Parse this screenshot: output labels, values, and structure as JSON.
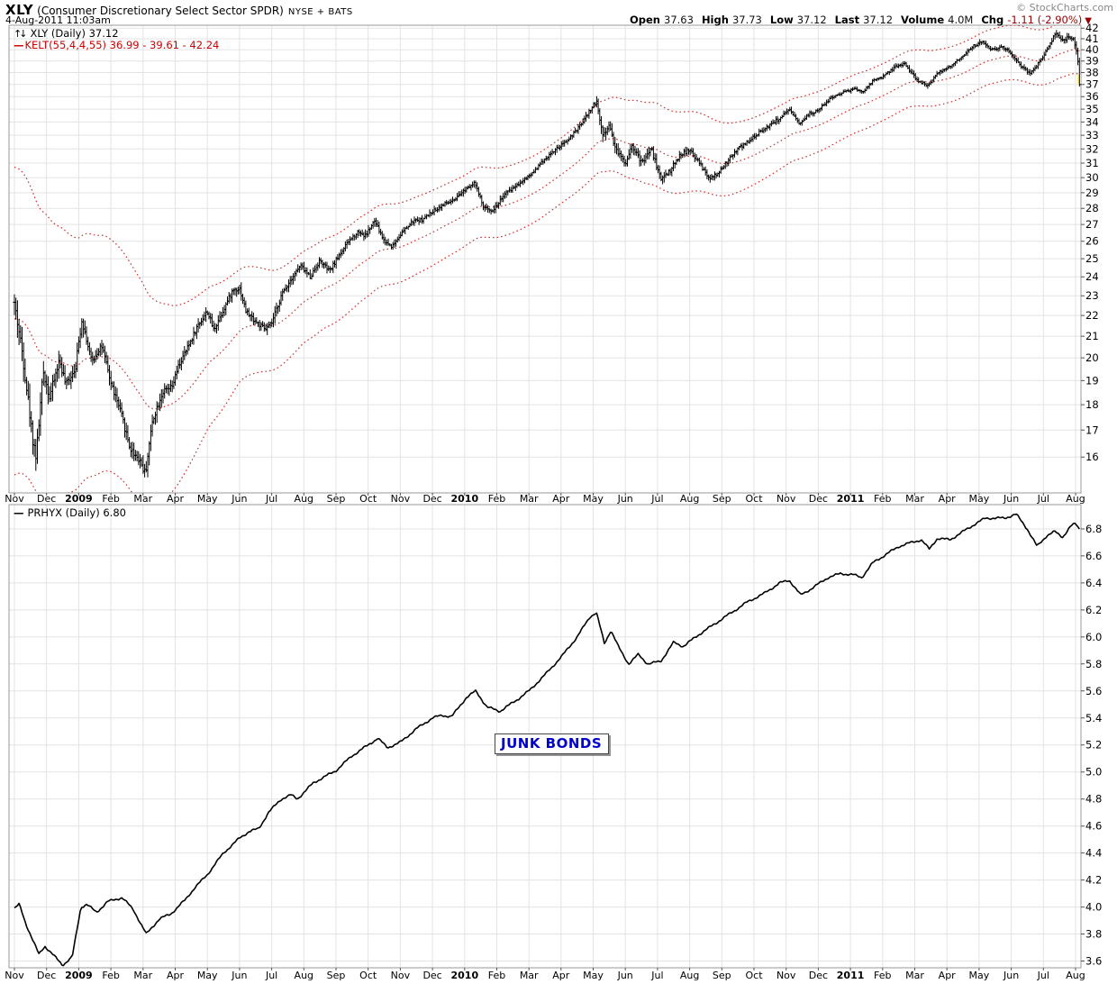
{
  "header": {
    "symbol": "XLY",
    "name": "(Consumer Discretionary Select Sector SPDR)",
    "exchange": "NYSE + BATS",
    "copyright": "© StockCharts.com",
    "datetime": "4-Aug-2011 11:03am",
    "quote": {
      "open_label": "Open",
      "open": "37.63",
      "high_label": "High",
      "high": "37.73",
      "low_label": "Low",
      "low": "37.12",
      "last_label": "Last",
      "last": "37.12",
      "volume_label": "Volume",
      "volume": "4.0M",
      "chg_label": "Chg",
      "chg": "-1.11 (-2.90%)",
      "chg_arrow": "▼"
    }
  },
  "legends": {
    "xly_icon": "↑↓",
    "xly": "XLY (Daily) 37.12",
    "kelt_swatch": "—",
    "kelt": "KELT(55,4,4,55) 36.99 - 39.61 - 42.24",
    "prhyx_swatch": "—",
    "prhyx": "PRHYX (Daily) 6.80"
  },
  "annotation": {
    "text": "JUNK BONDS"
  },
  "colors": {
    "bar": "#000000",
    "kelt": "#cc3333",
    "grid": "#e3e3e3",
    "border": "#999999",
    "tick": "#555555",
    "neg": "#990000",
    "annotation_blue": "#0000cc",
    "highlight": "#ffee77",
    "line": "#000000"
  },
  "chart_data": [
    {
      "type": "ohlc-bar",
      "symbol": "XLY",
      "timeframe": "Daily",
      "title": "XLY (Daily) 37.12",
      "last": 37.12,
      "scale": "log",
      "ylim": [
        14.76,
        42.27
      ],
      "yticks": [
        16,
        17,
        18,
        19,
        20,
        21,
        22,
        23,
        24,
        25,
        26,
        27,
        28,
        29,
        30,
        31,
        32,
        33,
        34,
        35,
        36,
        37,
        38,
        39,
        40,
        41,
        42
      ],
      "x_axis_labels": [
        "Nov",
        "Dec",
        "2009",
        "Feb",
        "Mar",
        "Apr",
        "May",
        "Jun",
        "Jul",
        "Aug",
        "Sep",
        "Oct",
        "Nov",
        "Dec",
        "2010",
        "Feb",
        "Mar",
        "Apr",
        "May",
        "Jun",
        "Jul",
        "Aug",
        "Sep",
        "Oct",
        "Nov",
        "Dec",
        "2011",
        "Feb",
        "Mar",
        "Apr",
        "May",
        "Jun",
        "Jul",
        "Aug"
      ],
      "overlays": {
        "keltner_label": "KELT(55,4,4,55)",
        "keltner_values": [
          36.99,
          39.61,
          42.24
        ]
      },
      "ohlc_today": {
        "open": 37.63,
        "high": 37.73,
        "low": 37.12,
        "last": 37.12,
        "volume": "4.0M",
        "chg": "-1.11 (-2.90%)"
      },
      "close_keypoints": [
        [
          0.0,
          22.6
        ],
        [
          0.25,
          20.2
        ],
        [
          0.55,
          16.8
        ],
        [
          0.68,
          16.0
        ],
        [
          0.9,
          19.4
        ],
        [
          1.1,
          18.3
        ],
        [
          1.4,
          19.9
        ],
        [
          1.6,
          18.8
        ],
        [
          1.9,
          19.6
        ],
        [
          2.1,
          21.8
        ],
        [
          2.4,
          19.8
        ],
        [
          2.7,
          20.6
        ],
        [
          3.0,
          18.9
        ],
        [
          3.3,
          17.7
        ],
        [
          3.6,
          16.3
        ],
        [
          3.9,
          15.9
        ],
        [
          4.07,
          15.4
        ],
        [
          4.3,
          17.4
        ],
        [
          4.6,
          18.5
        ],
        [
          4.9,
          18.7
        ],
        [
          5.1,
          19.6
        ],
        [
          5.4,
          20.5
        ],
        [
          5.7,
          21.5
        ],
        [
          6.0,
          22.2
        ],
        [
          6.2,
          21.3
        ],
        [
          6.5,
          22.3
        ],
        [
          6.8,
          23.3
        ],
        [
          7.0,
          23.4
        ],
        [
          7.2,
          22.2
        ],
        [
          7.5,
          21.7
        ],
        [
          7.8,
          21.3
        ],
        [
          8.0,
          21.6
        ],
        [
          8.3,
          23.0
        ],
        [
          8.6,
          23.9
        ],
        [
          8.9,
          24.6
        ],
        [
          9.2,
          24.0
        ],
        [
          9.5,
          24.9
        ],
        [
          9.8,
          24.3
        ],
        [
          10.1,
          25.2
        ],
        [
          10.4,
          26.0
        ],
        [
          10.7,
          26.6
        ],
        [
          10.9,
          26.3
        ],
        [
          11.2,
          27.2
        ],
        [
          11.5,
          26.0
        ],
        [
          11.75,
          25.7
        ],
        [
          12.0,
          26.4
        ],
        [
          12.4,
          27.2
        ],
        [
          12.7,
          27.3
        ],
        [
          13.0,
          27.8
        ],
        [
          13.4,
          28.3
        ],
        [
          13.7,
          28.5
        ],
        [
          14.05,
          29.3
        ],
        [
          14.3,
          29.7
        ],
        [
          14.6,
          28.0
        ],
        [
          14.9,
          27.9
        ],
        [
          15.2,
          28.8
        ],
        [
          15.5,
          29.3
        ],
        [
          15.8,
          29.8
        ],
        [
          16.1,
          30.3
        ],
        [
          16.5,
          31.3
        ],
        [
          16.8,
          31.9
        ],
        [
          17.1,
          32.4
        ],
        [
          17.5,
          33.4
        ],
        [
          17.8,
          34.5
        ],
        [
          18.0,
          35.3
        ],
        [
          18.1,
          35.6
        ],
        [
          18.3,
          33.0
        ],
        [
          18.5,
          33.8
        ],
        [
          18.7,
          32.0
        ],
        [
          19.0,
          31.0
        ],
        [
          19.2,
          32.3
        ],
        [
          19.5,
          31.0
        ],
        [
          19.8,
          32.0
        ],
        [
          20.1,
          29.9
        ],
        [
          20.4,
          30.5
        ],
        [
          20.7,
          31.6
        ],
        [
          21.0,
          31.9
        ],
        [
          21.3,
          31.0
        ],
        [
          21.6,
          29.9
        ],
        [
          21.9,
          30.3
        ],
        [
          22.2,
          31.2
        ],
        [
          22.5,
          32.0
        ],
        [
          22.8,
          32.5
        ],
        [
          23.1,
          33.1
        ],
        [
          23.5,
          33.8
        ],
        [
          23.8,
          34.3
        ],
        [
          24.1,
          34.9
        ],
        [
          24.4,
          33.9
        ],
        [
          24.7,
          34.6
        ],
        [
          25.0,
          34.9
        ],
        [
          25.4,
          35.9
        ],
        [
          25.8,
          36.4
        ],
        [
          26.1,
          36.6
        ],
        [
          26.4,
          36.4
        ],
        [
          26.7,
          37.3
        ],
        [
          27.0,
          37.6
        ],
        [
          27.4,
          38.5
        ],
        [
          27.7,
          38.8
        ],
        [
          27.9,
          37.9
        ],
        [
          28.1,
          37.3
        ],
        [
          28.4,
          36.9
        ],
        [
          28.7,
          38.0
        ],
        [
          29.0,
          38.3
        ],
        [
          29.4,
          39.2
        ],
        [
          29.8,
          40.3
        ],
        [
          30.1,
          40.7
        ],
        [
          30.4,
          40.0
        ],
        [
          30.7,
          40.3
        ],
        [
          31.0,
          39.7
        ],
        [
          31.3,
          38.6
        ],
        [
          31.6,
          37.9
        ],
        [
          31.9,
          39.0
        ],
        [
          32.2,
          40.6
        ],
        [
          32.4,
          41.6
        ],
        [
          32.6,
          40.8
        ],
        [
          32.8,
          41.3
        ],
        [
          32.95,
          40.9
        ],
        [
          33.05,
          39.6
        ],
        [
          33.12,
          37.12
        ]
      ],
      "volatility_keypoints": [
        [
          0,
          0.03
        ],
        [
          0.7,
          0.032
        ],
        [
          1,
          0.022
        ],
        [
          2,
          0.018
        ],
        [
          3,
          0.016
        ],
        [
          4,
          0.021
        ],
        [
          4.5,
          0.016
        ],
        [
          5,
          0.014
        ],
        [
          6,
          0.013
        ],
        [
          7,
          0.012
        ],
        [
          8,
          0.012
        ],
        [
          9,
          0.01
        ],
        [
          10,
          0.009
        ],
        [
          11,
          0.01
        ],
        [
          12,
          0.008
        ],
        [
          13,
          0.007
        ],
        [
          14,
          0.008
        ],
        [
          15,
          0.009
        ],
        [
          16,
          0.006
        ],
        [
          17,
          0.007
        ],
        [
          18,
          0.008
        ],
        [
          18.3,
          0.016
        ],
        [
          19,
          0.013
        ],
        [
          20,
          0.012
        ],
        [
          21,
          0.009
        ],
        [
          22,
          0.008
        ],
        [
          23,
          0.007
        ],
        [
          24,
          0.007
        ],
        [
          25,
          0.006
        ],
        [
          26,
          0.005
        ],
        [
          27,
          0.005
        ],
        [
          28,
          0.007
        ],
        [
          29,
          0.005
        ],
        [
          30,
          0.006
        ],
        [
          31,
          0.006
        ],
        [
          32,
          0.007
        ],
        [
          33,
          0.009
        ],
        [
          33.12,
          0.012
        ]
      ],
      "keltner_width_keypoints": [
        [
          0,
          0.37
        ],
        [
          1,
          0.34
        ],
        [
          2,
          0.3
        ],
        [
          3,
          0.28
        ],
        [
          4,
          0.27
        ],
        [
          5,
          0.22
        ],
        [
          6,
          0.17
        ],
        [
          7,
          0.135
        ],
        [
          8,
          0.12
        ],
        [
          9,
          0.11
        ],
        [
          10,
          0.105
        ],
        [
          11,
          0.1
        ],
        [
          12,
          0.095
        ],
        [
          13,
          0.09
        ],
        [
          14,
          0.085
        ],
        [
          15,
          0.083
        ],
        [
          16,
          0.08
        ],
        [
          17,
          0.078
        ],
        [
          18,
          0.082
        ],
        [
          19,
          0.092
        ],
        [
          20,
          0.1
        ],
        [
          21,
          0.096
        ],
        [
          22,
          0.088
        ],
        [
          23,
          0.08
        ],
        [
          24,
          0.075
        ],
        [
          25,
          0.072
        ],
        [
          26,
          0.07
        ],
        [
          27,
          0.068
        ],
        [
          28,
          0.067
        ],
        [
          29,
          0.066
        ],
        [
          30,
          0.065
        ],
        [
          31,
          0.065
        ],
        [
          32,
          0.066
        ],
        [
          33.12,
          0.066
        ]
      ]
    },
    {
      "type": "line",
      "symbol": "PRHYX",
      "timeframe": "Daily",
      "title": "PRHYX (Daily) 6.80",
      "last": 6.8,
      "scale": "linear",
      "ylim": [
        3.55,
        6.98
      ],
      "yticks": [
        3.6,
        3.8,
        4.0,
        4.2,
        4.4,
        4.6,
        4.8,
        5.0,
        5.2,
        5.4,
        5.6,
        5.8,
        6.0,
        6.2,
        6.4,
        6.6,
        6.8
      ],
      "x_axis_labels": [
        "Nov",
        "Dec",
        "2009",
        "Feb",
        "Mar",
        "Apr",
        "May",
        "Jun",
        "Jul",
        "Aug",
        "Sep",
        "Oct",
        "Nov",
        "Dec",
        "2010",
        "Feb",
        "Mar",
        "Apr",
        "May",
        "Jun",
        "Jul",
        "Aug",
        "Sep",
        "Oct",
        "Nov",
        "Dec",
        "2011",
        "Feb",
        "Mar",
        "Apr",
        "May",
        "Jun",
        "Jul",
        "Aug"
      ],
      "annotation": "JUNK BONDS",
      "line_keypoints": [
        [
          0.0,
          3.99
        ],
        [
          0.15,
          4.02
        ],
        [
          0.35,
          3.88
        ],
        [
          0.76,
          3.65
        ],
        [
          0.95,
          3.71
        ],
        [
          1.5,
          3.57
        ],
        [
          1.8,
          3.63
        ],
        [
          2.07,
          4.0
        ],
        [
          2.25,
          4.02
        ],
        [
          2.55,
          3.96
        ],
        [
          2.9,
          4.04
        ],
        [
          3.35,
          4.07
        ],
        [
          3.7,
          3.98
        ],
        [
          4.1,
          3.8
        ],
        [
          4.5,
          3.91
        ],
        [
          4.87,
          3.95
        ],
        [
          5.3,
          4.05
        ],
        [
          5.6,
          4.14
        ],
        [
          6.0,
          4.24
        ],
        [
          6.5,
          4.4
        ],
        [
          7.0,
          4.51
        ],
        [
          7.3,
          4.56
        ],
        [
          7.6,
          4.58
        ],
        [
          7.9,
          4.7
        ],
        [
          8.3,
          4.8
        ],
        [
          8.6,
          4.83
        ],
        [
          8.8,
          4.8
        ],
        [
          9.3,
          4.92
        ],
        [
          10.0,
          5.01
        ],
        [
          10.5,
          5.12
        ],
        [
          11.0,
          5.2
        ],
        [
          11.3,
          5.25
        ],
        [
          11.6,
          5.18
        ],
        [
          12.0,
          5.22
        ],
        [
          12.5,
          5.32
        ],
        [
          13.0,
          5.4
        ],
        [
          13.3,
          5.42
        ],
        [
          13.6,
          5.41
        ],
        [
          14.05,
          5.55
        ],
        [
          14.35,
          5.6
        ],
        [
          14.7,
          5.48
        ],
        [
          15.1,
          5.45
        ],
        [
          15.6,
          5.53
        ],
        [
          16.0,
          5.6
        ],
        [
          16.5,
          5.72
        ],
        [
          17.0,
          5.85
        ],
        [
          17.5,
          6.0
        ],
        [
          17.9,
          6.15
        ],
        [
          18.1,
          6.18
        ],
        [
          18.35,
          5.95
        ],
        [
          18.55,
          6.05
        ],
        [
          18.8,
          5.92
        ],
        [
          19.1,
          5.8
        ],
        [
          19.4,
          5.87
        ],
        [
          19.7,
          5.8
        ],
        [
          20.1,
          5.82
        ],
        [
          20.5,
          5.96
        ],
        [
          20.8,
          5.93
        ],
        [
          21.3,
          6.02
        ],
        [
          21.8,
          6.1
        ],
        [
          22.3,
          6.18
        ],
        [
          22.8,
          6.26
        ],
        [
          23.3,
          6.32
        ],
        [
          23.8,
          6.4
        ],
        [
          24.1,
          6.42
        ],
        [
          24.45,
          6.31
        ],
        [
          24.8,
          6.36
        ],
        [
          25.3,
          6.44
        ],
        [
          25.7,
          6.47
        ],
        [
          26.1,
          6.46
        ],
        [
          26.35,
          6.44
        ],
        [
          26.7,
          6.55
        ],
        [
          27.1,
          6.61
        ],
        [
          27.5,
          6.67
        ],
        [
          27.9,
          6.7
        ],
        [
          28.2,
          6.72
        ],
        [
          28.45,
          6.65
        ],
        [
          28.7,
          6.73
        ],
        [
          29.1,
          6.72
        ],
        [
          29.5,
          6.78
        ],
        [
          29.9,
          6.84
        ],
        [
          30.2,
          6.88
        ],
        [
          30.8,
          6.88
        ],
        [
          31.15,
          6.91
        ],
        [
          31.5,
          6.8
        ],
        [
          31.8,
          6.67
        ],
        [
          32.1,
          6.75
        ],
        [
          32.35,
          6.78
        ],
        [
          32.6,
          6.74
        ],
        [
          32.85,
          6.82
        ],
        [
          33.0,
          6.84
        ],
        [
          33.12,
          6.8
        ]
      ]
    }
  ]
}
